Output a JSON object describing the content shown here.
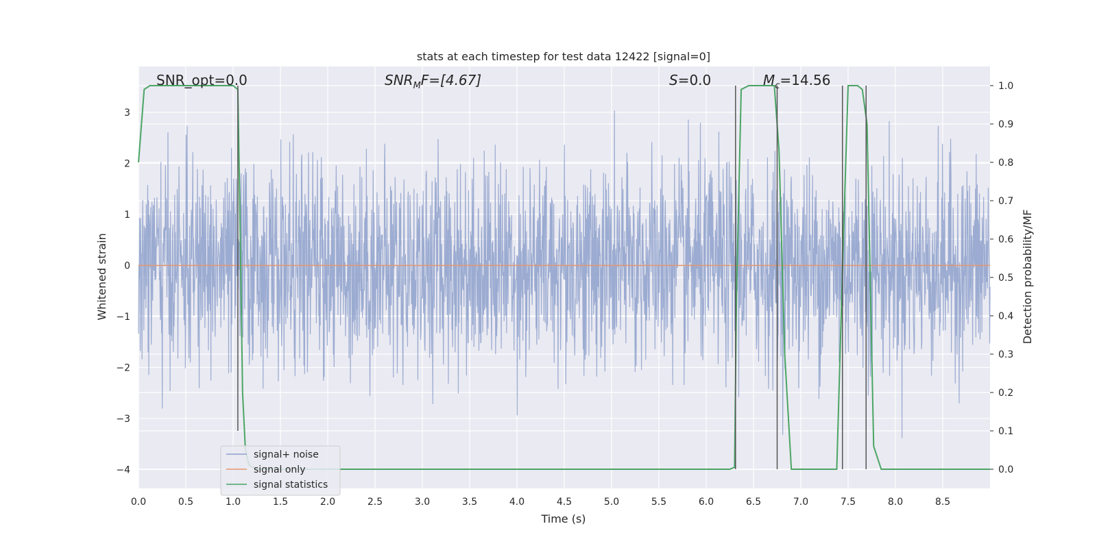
{
  "chart_data": {
    "type": "line",
    "title": "stats at each timestep for test data 12422 [signal=0]",
    "xlabel": "Time (s)",
    "ylabel": "Whitened strain",
    "y2label": "Detection probability/MF",
    "xlim": [
      0.0,
      9.0
    ],
    "ylim": [
      -4.37,
      3.9
    ],
    "y2lim": [
      -0.05,
      1.05
    ],
    "x_ticks": [
      0.0,
      0.5,
      1.0,
      1.5,
      2.0,
      2.5,
      3.0,
      3.5,
      4.0,
      4.5,
      5.0,
      5.5,
      6.0,
      6.5,
      7.0,
      7.5,
      8.0,
      8.5
    ],
    "x_tick_labels": [
      "0.0",
      "0.5",
      "1.0",
      "1.5",
      "2.0",
      "2.5",
      "3.0",
      "3.5",
      "4.0",
      "4.5",
      "5.0",
      "5.5",
      "6.0",
      "6.5",
      "7.0",
      "7.5",
      "8.0",
      "8.5"
    ],
    "y_ticks": [
      -4,
      -3,
      -2,
      -1,
      0,
      1,
      2,
      3
    ],
    "y_tick_labels": [
      "−4",
      "−3",
      "−2",
      "−1",
      "0",
      "1",
      "2",
      "3"
    ],
    "y2_ticks": [
      0.0,
      0.1,
      0.2,
      0.3,
      0.4,
      0.5,
      0.6,
      0.7,
      0.8,
      0.9,
      1.0
    ],
    "y2_tick_labels": [
      "0.0",
      "0.1",
      "0.2",
      "0.3",
      "0.4",
      "0.5",
      "0.6",
      "0.7",
      "0.8",
      "0.9",
      "1.0"
    ],
    "grid": true,
    "legend_placement": "lower-left",
    "annotations": {
      "snr_opt": "SNR_opt=0.0",
      "snr_mf_base": "SNR",
      "snr_mf_sub": "M",
      "snr_mf_rest": "F=[4.67]",
      "s_symbol": "S",
      "s_rest": "=0.0",
      "mc_symbol": "M",
      "mc_sub": "c",
      "mc_rest": "=14.56"
    },
    "series": [
      {
        "name": "signal+ noise",
        "color": "#8da0cb",
        "noise_sigma": 1.0,
        "duration_s": 9.0,
        "axis": "left"
      },
      {
        "name": "signal only",
        "color": "#e5956d",
        "constant_value": 0.0,
        "axis": "left"
      },
      {
        "name": "signal statistics",
        "color": "#4aa564",
        "axis": "right",
        "x": [
          0.0,
          0.06,
          0.12,
          0.5,
          1.0,
          1.05,
          1.07,
          1.1,
          1.13,
          1.17,
          1.25,
          3.5,
          3.6,
          6.25,
          6.3,
          6.32,
          6.37,
          6.45,
          6.72,
          6.77,
          6.83,
          6.9,
          7.38,
          7.45,
          7.5,
          7.6,
          7.65,
          7.7,
          7.77,
          7.85,
          8.1,
          8.2,
          9.0
        ],
        "values": [
          0.8,
          0.99,
          1.0,
          1.0,
          1.0,
          0.99,
          0.7,
          0.2,
          0.05,
          0.01,
          0.0,
          0.0,
          0.0,
          0.0,
          0.005,
          0.45,
          0.99,
          1.0,
          1.0,
          0.83,
          0.3,
          0.0,
          0.0,
          0.6,
          1.0,
          1.0,
          0.99,
          0.9,
          0.06,
          0.0,
          0.0,
          0.0,
          0.0
        ]
      }
    ],
    "vertical_markers": [
      {
        "x": 1.05,
        "y_top": 1.0,
        "y_bottom": 0.1
      },
      {
        "x": 6.31,
        "y_top": 1.0,
        "y_bottom": 0.0
      },
      {
        "x": 6.75,
        "y_top": 1.0,
        "y_bottom": 0.0
      },
      {
        "x": 7.44,
        "y_top": 1.0,
        "y_bottom": 0.0
      },
      {
        "x": 7.69,
        "y_top": 1.0,
        "y_bottom": 0.0
      }
    ],
    "marker_color": "#555555",
    "background_color": "#eaeaf2",
    "grid_color": "#ffffff"
  }
}
